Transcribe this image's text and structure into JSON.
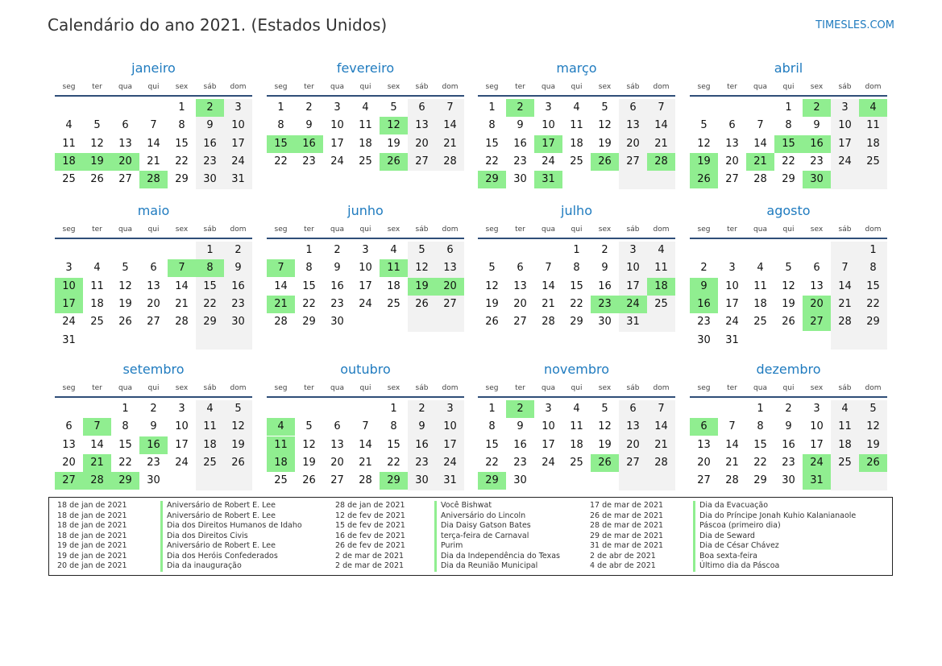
{
  "header": {
    "title": "Calendário do ano 2021. (Estados Unidos)",
    "brand": "TIMESLES.COM"
  },
  "colors": {
    "month_name": "#1f7bbf",
    "holiday": "#90ee90",
    "weekend_bg": "#f2f2f2",
    "rule": "#2f4e78"
  },
  "weekdays": [
    "seg",
    "ter",
    "qua",
    "qui",
    "sex",
    "sáb",
    "dom"
  ],
  "months": [
    {
      "name": "janeiro",
      "start": 4,
      "days": 31,
      "holidays": [
        2,
        18,
        19,
        20,
        28
      ]
    },
    {
      "name": "fevereiro",
      "start": 0,
      "days": 28,
      "holidays": [
        12,
        15,
        16,
        26
      ]
    },
    {
      "name": "março",
      "start": 0,
      "days": 31,
      "holidays": [
        2,
        17,
        26,
        28,
        29,
        31
      ]
    },
    {
      "name": "abril",
      "start": 3,
      "days": 30,
      "holidays": [
        2,
        4,
        15,
        16,
        19,
        21,
        26,
        30
      ]
    },
    {
      "name": "maio",
      "start": 5,
      "days": 31,
      "holidays": [
        7,
        8,
        10,
        17
      ]
    },
    {
      "name": "junho",
      "start": 1,
      "days": 30,
      "holidays": [
        7,
        11,
        19,
        20,
        21
      ]
    },
    {
      "name": "julho",
      "start": 3,
      "days": 31,
      "holidays": [
        18,
        23,
        24
      ]
    },
    {
      "name": "agosto",
      "start": 6,
      "days": 31,
      "holidays": [
        9,
        16,
        20,
        27
      ]
    },
    {
      "name": "setembro",
      "start": 2,
      "days": 30,
      "holidays": [
        7,
        16,
        21,
        27,
        28,
        29
      ]
    },
    {
      "name": "outubro",
      "start": 4,
      "days": 31,
      "holidays": [
        4,
        11,
        18,
        29
      ]
    },
    {
      "name": "novembro",
      "start": 0,
      "days": 30,
      "holidays": [
        2,
        26,
        29
      ]
    },
    {
      "name": "dezembro",
      "start": 2,
      "days": 31,
      "holidays": [
        6,
        24,
        26,
        31
      ]
    }
  ],
  "legend": {
    "col1_dates": [
      "18 de jan de 2021",
      "18 de jan de 2021",
      "18 de jan de 2021",
      "18 de jan de 2021",
      "19 de jan de 2021",
      "19 de jan de 2021",
      "20 de jan de 2021"
    ],
    "col1_names": [
      "Aniversário de Robert E. Lee",
      "Aniversário de Robert E. Lee",
      "Dia dos Direitos Humanos de Idaho",
      "Dia dos Direitos Civis",
      "Aniversário de Robert E. Lee",
      "Dia dos Heróis Confederados",
      "Dia da inauguração"
    ],
    "col2_dates": [
      "28 de jan de 2021",
      "12 de fev de 2021",
      "15 de fev de 2021",
      "16 de fev de 2021",
      "26 de fev de 2021",
      "2 de mar de 2021",
      "2 de mar de 2021"
    ],
    "col2_names": [
      "Você Bishwat",
      "Aniversário do Lincoln",
      "Dia Daisy Gatson Bates",
      "terça-feira de Carnaval",
      "Purim",
      "Dia da Independência do Texas",
      "Dia da Reunião Municipal"
    ],
    "col3_dates": [
      "17 de mar de 2021",
      "26 de mar de 2021",
      "28 de mar de 2021",
      "29 de mar de 2021",
      "31 de mar de 2021",
      "2 de abr de 2021",
      "4 de abr de 2021"
    ],
    "col3_names": [
      "Dia da Evacuação",
      "Dia do Príncipe Jonah Kuhio Kalanianaole",
      "Páscoa (primeiro dia)",
      "Dia de Seward",
      "Dia de César Chávez",
      "Boa sexta-feira",
      "Último dia da Páscoa"
    ]
  }
}
